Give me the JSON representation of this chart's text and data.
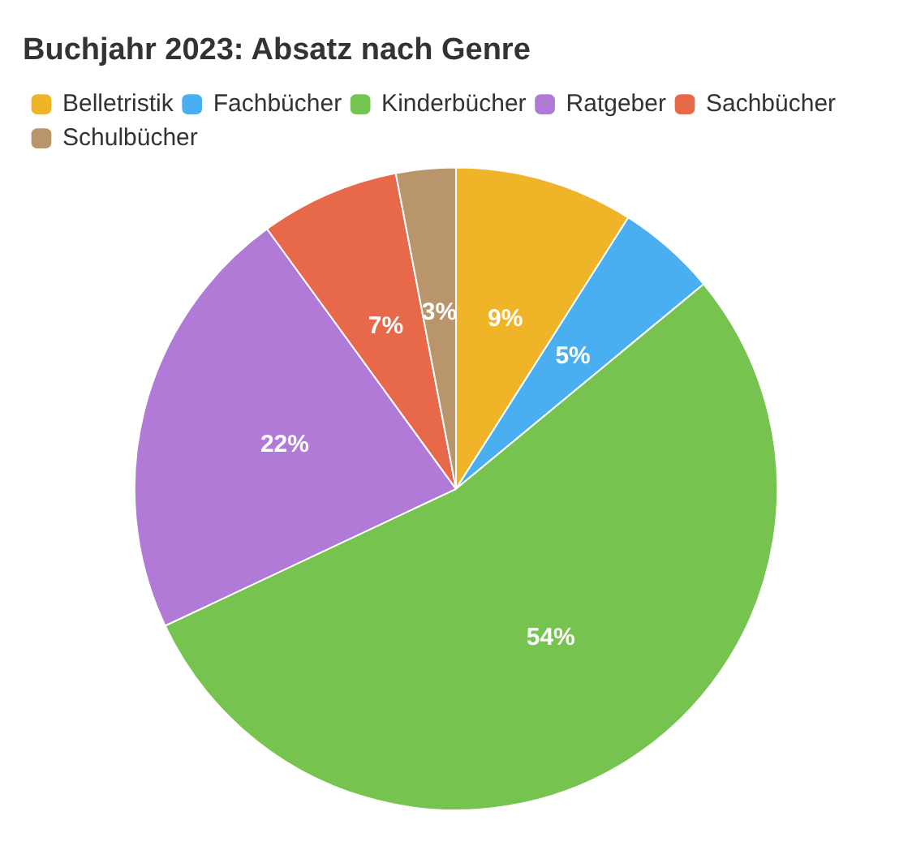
{
  "chart_data": {
    "type": "pie",
    "title": "Buchjahr 2023: Absatz nach Genre",
    "categories": [
      "Belletristik",
      "Fachbücher",
      "Kinderbücher",
      "Ratgeber",
      "Sachbücher",
      "Schulbücher"
    ],
    "values": [
      9,
      5,
      54,
      22,
      7,
      3
    ],
    "colors": [
      "#f0b429",
      "#4aaff0",
      "#76c34f",
      "#b07ad6",
      "#e8684a",
      "#b8956a"
    ],
    "value_labels": [
      "9%",
      "5%",
      "54%",
      "22%",
      "7%",
      "3%"
    ],
    "legend": "top left"
  }
}
